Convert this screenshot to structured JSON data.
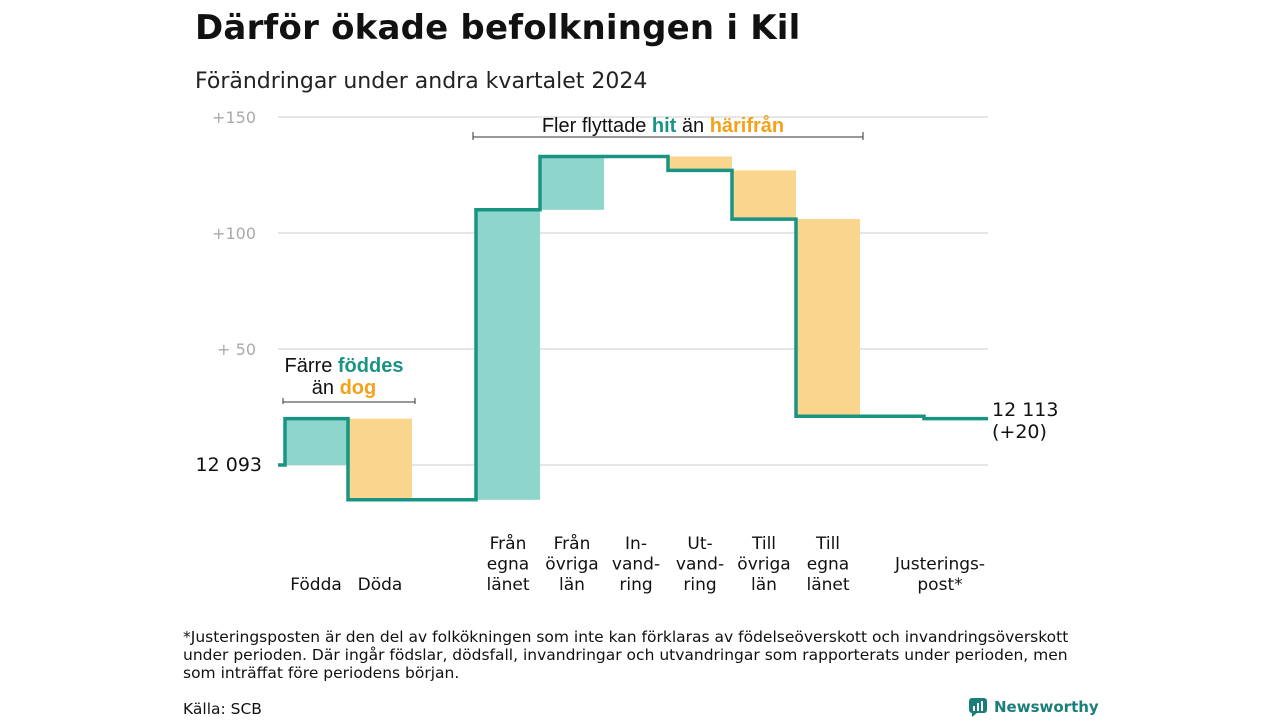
{
  "title": "Därför ökade befolkningen i Kil",
  "subtitle": "Förändringar under andra kvartalet 2024",
  "footnote": "*Justeringsposten är den del av folkökningen som inte kan förklaras av födelseöverskott och invandringsöverskott under perioden. Där ingår födslar, dödsfall, invandringar och utvandringar som rapporterats under perioden, men som inträffat före periodens början.",
  "source": "Källa: SCB",
  "logo_text": "Newsworthy",
  "colors": {
    "increase": "#8ed5cc",
    "decrease": "#fad58e",
    "line": "#1a9482",
    "grid": "#dddddd",
    "teal_text": "#1a9482",
    "orange_text": "#f4a21a"
  },
  "chart_data": {
    "type": "waterfall",
    "start_value": 12093,
    "start_label": "12  093",
    "end_label_value": "12 113",
    "end_label_change": "(+20)",
    "ylim": [
      -16,
      150
    ],
    "y_ticks": [
      {
        "value": 150,
        "label": "+150"
      },
      {
        "value": 100,
        "label": "+100"
      },
      {
        "value": 50,
        "label": "+  50"
      },
      {
        "value": 0,
        "label": ""
      }
    ],
    "categories": [
      {
        "label": [
          "Födda"
        ],
        "change": 20
      },
      {
        "label": [
          "Döda"
        ],
        "change": -35
      },
      {
        "label": [
          "Från",
          "egna",
          "länet"
        ],
        "change": 125
      },
      {
        "label": [
          "Från",
          "övriga",
          "län"
        ],
        "change": 23
      },
      {
        "label": [
          "In-",
          "vand-",
          "ring"
        ],
        "change": 0
      },
      {
        "label": [
          "Ut-",
          "vand-",
          "ring"
        ],
        "change": -6
      },
      {
        "label": [
          "Till",
          "övriga",
          "län"
        ],
        "change": -21
      },
      {
        "label": [
          "Till",
          "egna",
          "länet"
        ],
        "change": -85
      },
      {
        "label": [
          "Justerings-",
          "post*"
        ],
        "change": -1
      }
    ],
    "annotations": [
      {
        "parts": [
          {
            "text": "Färre ",
            "style": "normal"
          },
          {
            "text": "föddes",
            "style": "teal"
          }
        ],
        "parts2": [
          {
            "text": "än ",
            "style": "normal"
          },
          {
            "text": "dog",
            "style": "orange"
          }
        ]
      },
      {
        "parts": [
          {
            "text": "Fler flyttade ",
            "style": "normal"
          },
          {
            "text": "hit",
            "style": "teal"
          },
          {
            "text": " än ",
            "style": "normal"
          },
          {
            "text": "härifrån",
            "style": "orange"
          }
        ]
      }
    ]
  }
}
